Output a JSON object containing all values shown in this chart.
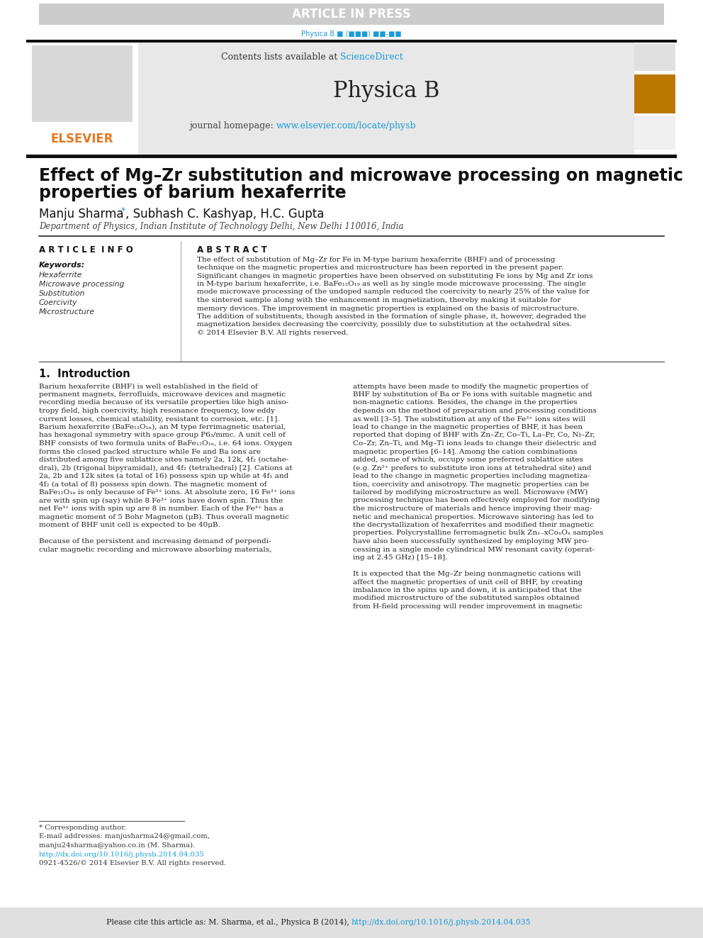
{
  "article_in_press_text": "ARTICLE IN PRESS",
  "article_in_press_bg": "#cccccc",
  "elsevier_color": "#e87722",
  "journal_title": "Physica B",
  "sciencedirect_color": "#1a9bd7",
  "homepage_url_color": "#1a9bd7",
  "paper_title_line1": "Effect of Mg–Zr substitution and microwave processing on magnetic",
  "paper_title_line2": "properties of barium hexaferrite",
  "affiliation": "Department of Physics, Indian Institute of Technology Delhi, New Delhi 110016, India",
  "article_info_header": "A R T I C L E  I N F O",
  "abstract_header": "A B S T R A C T",
  "keywords_header": "Keywords:",
  "keywords": [
    "Hexaferrite",
    "Microwave processing",
    "Substitution",
    "Coercivity",
    "Microstructure"
  ],
  "intro_header": "1.  Introduction",
  "footnote_author": "* Corresponding author.",
  "footnote_email1": "E-mail addresses: manjusharma24@gmail.com,",
  "footnote_email2": "manju24sharma@yahoo.co.in (M. Sharma).",
  "footnote_doi": "http://dx.doi.org/10.1016/j.physb.2014.04.035",
  "footnote_rights": "0921-4526/© 2014 Elsevier B.V. All rights reserved.",
  "bg_color": "white",
  "abstract_lines": [
    "The effect of substitution of Mg–Zr for Fe in M-type barium hexaferrite (BHF) and of processing",
    "technique on the magnetic properties and microstructure has been reported in the present paper.",
    "Significant changes in magnetic properties have been observed on substituting Fe ions by Mg and Zr ions",
    "in M-type barium hexaferrite, i.e. BaFe₁₂O₁₉ as well as by single mode microwave processing. The single",
    "mode microwave processing of the undoped sample reduced the coercivity to nearly 25% of the value for",
    "the sintered sample along with the enhancement in magnetization, thereby making it suitable for",
    "memory devices. The improvement in magnetic properties is explained on the basis of microstructure.",
    "The addition of substituents, though assisted in the formation of single phase, it, however, degraded the",
    "magnetization besides decreasing the coercivity, possibly due to substitution at the octahedral sites.",
    "© 2014 Elsevier B.V. All rights reserved."
  ],
  "col1_lines": [
    "Barium hexaferrite (BHF) is well established in the field of",
    "permanent magnets, ferrofluids, microwave devices and magnetic",
    "recording media because of its versatile properties like high aniso-",
    "tropy field, high coercivity, high resonance frequency, low eddy",
    "current losses, chemical stability, resistant to corrosion, etc. [1].",
    "Barium hexaferrite (BaFe₁₂O₁ₙ), an M type ferrimagnetic material,",
    "has hexagonal symmetry with space group P6₃/mmc. A unit cell of",
    "BHF consists of two formula units of BaFe₁₂O₁ₙ, i.e. 64 ions. Oxygen",
    "forms the closed packed structure while Fe and Ba ions are",
    "distributed among five sublattice sites namely 2a, 12k, 4f₂ (octahe-",
    "dral), 2b (trigonal bipyramidal), and 4f₁ (tetrahedral) [2]. Cations at",
    "2a, 2b and 12k sites (a total of 16) possess spin up while at 4f₁ and",
    "4f₂ (a total of 8) possess spin down. The magnetic moment of",
    "BaFe₁₂O₁ₙ is only because of Fe³⁺ ions. At absolute zero, 16 Fe³⁺ ions",
    "are with spin up (say) while 8 Fe³⁺ ions have down spin. Thus the",
    "net Fe³⁺ ions with spin up are 8 in number. Each of the Fe³⁺ has a",
    "magnetic moment of 5 Bohr Magneton (μB). Thus overall magnetic",
    "moment of BHF unit cell is expected to be 40μB.",
    "",
    "Because of the persistent and increasing demand of perpendi-",
    "cular magnetic recording and microwave absorbing materials,"
  ],
  "col2_lines": [
    "attempts have been made to modify the magnetic properties of",
    "BHF by substitution of Ba or Fe ions with suitable magnetic and",
    "non-magnetic cations. Besides, the change in the properties",
    "depends on the method of preparation and processing conditions",
    "as well [3–5]. The substitution at any of the Fe³⁺ ions sites will",
    "lead to change in the magnetic properties of BHF, it has been",
    "reported that doping of BHF with Zn–Zr, Co–Ti, La–Pr, Co, Ni–Zr,",
    "Co–Zr, Zn–Ti, and Mg–Ti ions leads to change their dielectric and",
    "magnetic properties [6–14]. Among the cation combinations",
    "added, some of which, occupy some preferred sublattice sites",
    "(e.g. Zn²⁺ prefers to substitute iron ions at tetrahedral site) and",
    "lead to the change in magnetic properties including magnetiza-",
    "tion, coercivity and anisotropy. The magnetic properties can be",
    "tailored by modifying microstructure as well. Microwave (MW)",
    "processing technique has been effectively employed for modifying",
    "the microstructure of materials and hence improving their mag-",
    "netic and mechanical properties. Microwave sintering has led to",
    "the decrystallization of hexaferrites and modified their magnetic",
    "properties. Polycrystalline ferromagnetic bulk Zn₁₋xCoₓOₓ samples",
    "have also been successfully synthesized by employing MW pro-",
    "cessing in a single mode cylindrical MW resonant cavity (operat-",
    "ing at 2.45 GHz) [15–18].",
    "",
    "It is expected that the Mg–Zr being nonmagnetic cations will",
    "affect the magnetic properties of unit cell of BHF, by creating",
    "imbalance in the spins up and down, it is anticipated that the",
    "modified microstructure of the substituted samples obtained",
    "from H-field processing will render improvement in magnetic"
  ]
}
